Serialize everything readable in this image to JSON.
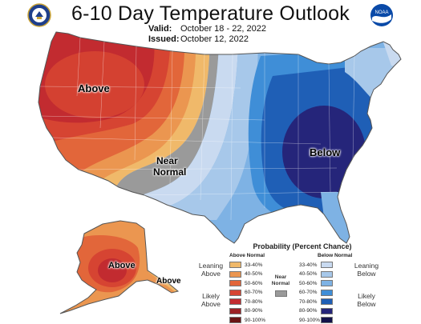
{
  "header": {
    "title": "6-10 Day Temperature Outlook",
    "valid_label": "Valid:",
    "valid_value": "October 18 - 22, 2022",
    "issued_label": "Issued:",
    "issued_value": "October 12, 2022"
  },
  "logos": {
    "left": "doc-seal-icon",
    "right": "noaa-logo-icon",
    "noaa_text": "NOAA"
  },
  "map_labels": {
    "west": "Above",
    "middle_line1": "Near",
    "middle_line2": "Normal",
    "east": "Below",
    "alaska_main": "Above",
    "alaska_south": "Above"
  },
  "legend": {
    "title": "Probability (Percent Chance)",
    "above_header": "Above Normal",
    "below_header": "Below Normal",
    "near_normal_line1": "Near",
    "near_normal_line2": "Normal",
    "leaning_above_line1": "Leaning",
    "leaning_above_line2": "Above",
    "likely_above_line1": "Likely",
    "likely_above_line2": "Above",
    "leaning_below_line1": "Leaning",
    "leaning_below_line2": "Below",
    "likely_below_line1": "Likely",
    "likely_below_line2": "Below",
    "ranges": [
      "33-40%",
      "40-50%",
      "50-60%",
      "60-70%",
      "70-80%",
      "80-90%",
      "90-100%"
    ],
    "above_colors": [
      "#f0b96a",
      "#eb9650",
      "#e2663a",
      "#d64432",
      "#c22b30",
      "#9c2125",
      "#6a1515"
    ],
    "below_colors": [
      "#c9daf0",
      "#a7c8ea",
      "#7eb2e4",
      "#3f8ed7",
      "#1f5fb6",
      "#25257a",
      "#12124a"
    ],
    "near_color": "#9a9a9a"
  }
}
